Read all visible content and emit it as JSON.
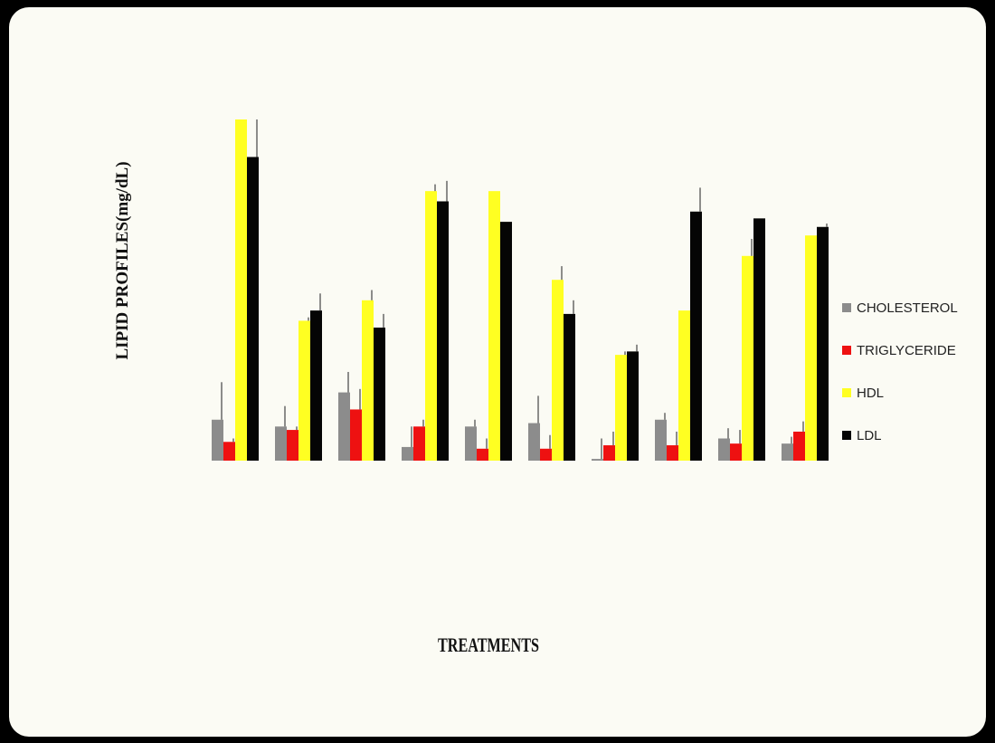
{
  "chart_data": {
    "type": "bar",
    "ylabel": "LIPID PROFILES(mg/dL)",
    "xlabel": "TREATMENTS",
    "categories": [
      "",
      "",
      "",
      "",
      "",
      "",
      "",
      "",
      "",
      ""
    ],
    "ylim": [
      0,
      100
    ],
    "grid": false,
    "legend_position": "right",
    "series": [
      {
        "name": "CHOLESTEROL",
        "color": "#8c8c8c",
        "values": [
          12,
          10,
          20,
          4,
          10,
          11,
          0.5,
          12,
          6.5,
          5
        ],
        "errors": [
          11,
          6,
          6,
          6,
          2,
          8,
          6,
          2,
          3,
          2
        ]
      },
      {
        "name": "TRIGLYCERIDE",
        "color": "#ee1111",
        "values": [
          5.5,
          9,
          15,
          10,
          3.5,
          3.5,
          4.5,
          4.5,
          5,
          8.5
        ],
        "errors": [
          1,
          1,
          6,
          2,
          3,
          4,
          4,
          4,
          4,
          3
        ]
      },
      {
        "name": "HDL",
        "color": "#ffff22",
        "values": [
          100,
          41,
          47,
          79,
          79,
          53,
          31,
          44,
          60,
          66
        ],
        "errors": [
          0,
          1,
          3,
          2,
          0,
          4,
          1,
          0,
          5,
          0
        ]
      },
      {
        "name": "LDL",
        "color": "#050505",
        "values": [
          89,
          44,
          39,
          76,
          70,
          43,
          32,
          73,
          71,
          68.5
        ],
        "errors": [
          11,
          5,
          4,
          6,
          0,
          4,
          2,
          7,
          0,
          1
        ]
      }
    ]
  }
}
